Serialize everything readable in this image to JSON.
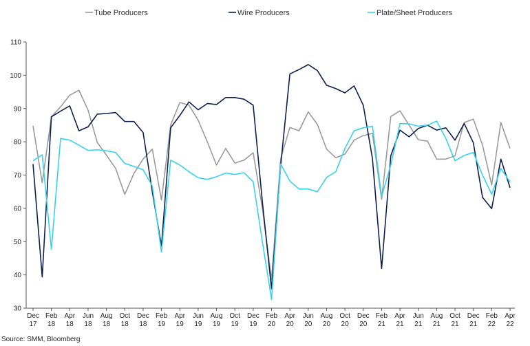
{
  "source": "Source: SMM, Bloomberg",
  "chart_data": {
    "type": "line",
    "title": "",
    "xlabel": "",
    "ylabel": "",
    "ylim": [
      30,
      110
    ],
    "yticks": [
      "30",
      "40",
      "50",
      "60",
      "70",
      "80",
      "90",
      "100",
      "110"
    ],
    "grid": false,
    "legend": "top",
    "x": [
      "Dec-17",
      "Jan-18",
      "Feb-18",
      "Mar-18",
      "Apr-18",
      "May-18",
      "Jun-18",
      "Jul-18",
      "Aug-18",
      "Sep-18",
      "Oct-18",
      "Nov-18",
      "Dec-18",
      "Jan-19",
      "Feb-19",
      "Mar-19",
      "Apr-19",
      "May-19",
      "Jun-19",
      "Jul-19",
      "Aug-19",
      "Sep-19",
      "Oct-19",
      "Nov-19",
      "Dec-19",
      "Jan-20",
      "Feb-20",
      "Mar-20",
      "Apr-20",
      "May-20",
      "Jun-20",
      "Jul-20",
      "Aug-20",
      "Sep-20",
      "Oct-20",
      "Nov-20",
      "Dec-20",
      "Jan-21",
      "Feb-21",
      "Mar-21",
      "Apr-21",
      "May-21",
      "Jun-21",
      "Jul-21",
      "Aug-21",
      "Sep-21",
      "Oct-21",
      "Nov-21",
      "Dec-21",
      "Jan-22",
      "Feb-22",
      "Mar-22",
      "Apr-22"
    ],
    "tick_labels": [
      {
        "i": 0,
        "top": "Dec",
        "bottom": "17"
      },
      {
        "i": 2,
        "top": "Feb",
        "bottom": "18"
      },
      {
        "i": 4,
        "top": "Apr",
        "bottom": "18"
      },
      {
        "i": 6,
        "top": "Jun",
        "bottom": "18"
      },
      {
        "i": 8,
        "top": "Aug",
        "bottom": "18"
      },
      {
        "i": 10,
        "top": "Oct",
        "bottom": "18"
      },
      {
        "i": 12,
        "top": "Dec",
        "bottom": "18"
      },
      {
        "i": 14,
        "top": "Feb",
        "bottom": "19"
      },
      {
        "i": 16,
        "top": "Apr",
        "bottom": "19"
      },
      {
        "i": 18,
        "top": "Jun",
        "bottom": "19"
      },
      {
        "i": 20,
        "top": "Aug",
        "bottom": "19"
      },
      {
        "i": 22,
        "top": "Oct",
        "bottom": "19"
      },
      {
        "i": 24,
        "top": "Dec",
        "bottom": "19"
      },
      {
        "i": 26,
        "top": "Feb",
        "bottom": "20"
      },
      {
        "i": 28,
        "top": "Apr",
        "bottom": "20"
      },
      {
        "i": 30,
        "top": "Jun",
        "bottom": "20"
      },
      {
        "i": 32,
        "top": "Aug",
        "bottom": "20"
      },
      {
        "i": 34,
        "top": "Oct",
        "bottom": "20"
      },
      {
        "i": 36,
        "top": "Dec",
        "bottom": "20"
      },
      {
        "i": 38,
        "top": "Feb",
        "bottom": "21"
      },
      {
        "i": 40,
        "top": "Apr",
        "bottom": "21"
      },
      {
        "i": 42,
        "top": "Jun",
        "bottom": "21"
      },
      {
        "i": 44,
        "top": "Aug",
        "bottom": "21"
      },
      {
        "i": 46,
        "top": "Oct",
        "bottom": "21"
      },
      {
        "i": 48,
        "top": "Dec",
        "bottom": "21"
      },
      {
        "i": 50,
        "top": "Feb",
        "bottom": "22"
      },
      {
        "i": 52,
        "top": "Apr",
        "bottom": "22"
      }
    ],
    "series": [
      {
        "name": "Tube Producers",
        "color": "#9a9a9a",
        "values": [
          84.8,
          67.7,
          87.5,
          90.5,
          94.0,
          95.5,
          89.5,
          79.8,
          76.0,
          72.0,
          64.2,
          70.5,
          74.8,
          77.8,
          62.5,
          85.0,
          91.8,
          91.0,
          86.5,
          80.0,
          73.0,
          78.0,
          73.6,
          74.5,
          76.7,
          60.0,
          38.6,
          75.0,
          84.3,
          83.3,
          89.0,
          85.2,
          77.8,
          75.2,
          76.3,
          80.5,
          81.9,
          82.5,
          62.7,
          87.6,
          89.3,
          85.0,
          80.6,
          80.2,
          74.8,
          74.8,
          75.8,
          85.8,
          86.8,
          79.0,
          67.0,
          85.8,
          78.0
        ]
      },
      {
        "name": "Wire Producers",
        "color": "#0d1f4e",
        "values": [
          73.3,
          39.4,
          87.5,
          89.2,
          90.8,
          83.3,
          84.5,
          88.3,
          88.5,
          88.8,
          86.1,
          86.1,
          82.8,
          65.0,
          48.7,
          84.2,
          87.9,
          92.0,
          89.6,
          91.5,
          91.2,
          93.3,
          93.3,
          92.8,
          91.0,
          62.0,
          35.8,
          73.0,
          100.4,
          101.7,
          103.2,
          101.4,
          97.0,
          96.0,
          94.7,
          96.8,
          91.0,
          75.0,
          41.9,
          75.8,
          83.5,
          81.5,
          84.0,
          85.0,
          83.5,
          84.2,
          80.5,
          85.5,
          79.7,
          63.3,
          59.9,
          74.8,
          66.2
        ]
      },
      {
        "name": "Plate/Sheet Producers",
        "color": "#35d4ec",
        "values": [
          74.3,
          76.1,
          47.7,
          81.0,
          80.5,
          79.0,
          77.4,
          77.6,
          77.3,
          76.8,
          73.5,
          72.6,
          71.6,
          66.7,
          46.9,
          74.5,
          73.0,
          71.0,
          69.2,
          68.7,
          69.5,
          70.6,
          70.2,
          70.7,
          68.0,
          50.0,
          32.6,
          73.3,
          68.2,
          65.8,
          65.8,
          65.0,
          69.3,
          71.0,
          78.0,
          83.3,
          84.2,
          84.7,
          63.6,
          73.0,
          85.5,
          85.4,
          84.7,
          85.0,
          86.2,
          81.0,
          74.3,
          75.9,
          76.8,
          70.0,
          64.2,
          72.0,
          67.9
        ]
      }
    ]
  }
}
